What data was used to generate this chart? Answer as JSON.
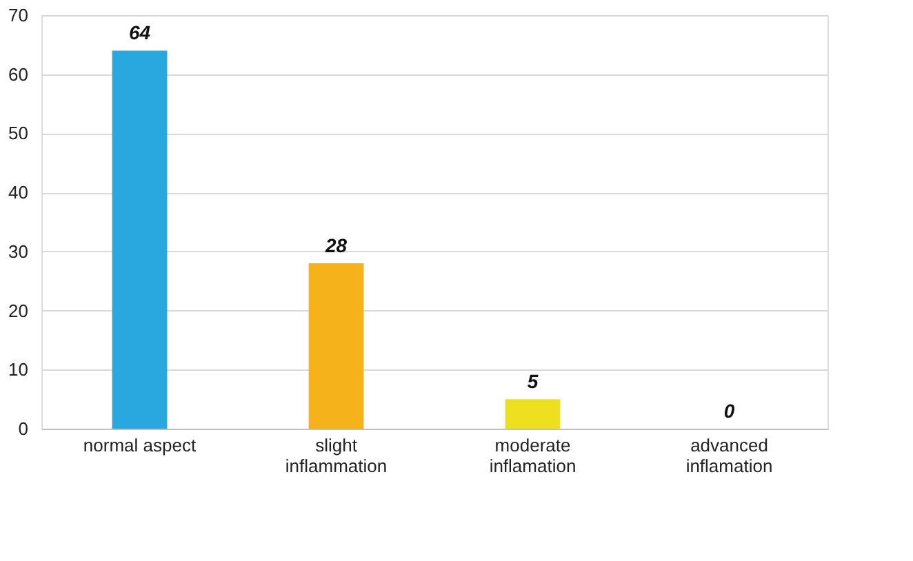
{
  "chart_data": {
    "type": "bar",
    "categories": [
      "normal aspect",
      "slight inflammation",
      "moderate inflamation",
      "advanced inflamation"
    ],
    "values": [
      64,
      28,
      5,
      0
    ],
    "colors": [
      "#29a8e0",
      "#f6b21a",
      "#efe01f",
      "#efe01f"
    ],
    "ylim": [
      0,
      70
    ],
    "yticks": [
      0,
      10,
      20,
      30,
      40,
      50,
      60,
      70
    ],
    "grid": "y",
    "data_labels": true
  }
}
